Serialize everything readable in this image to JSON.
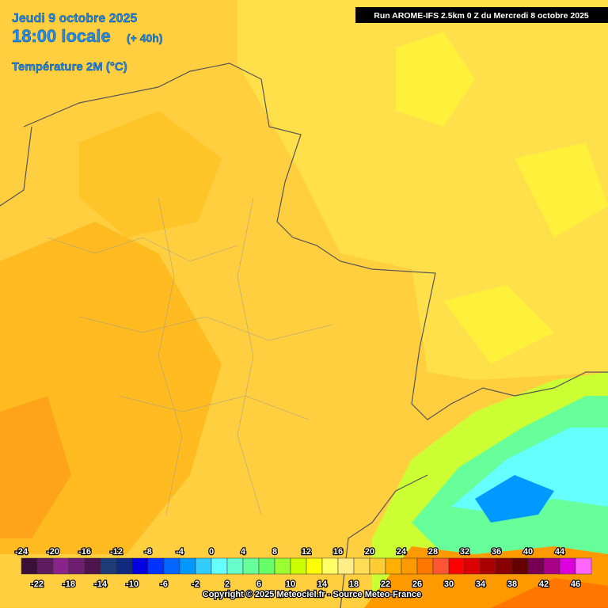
{
  "header": {
    "date": "Jeudi 9 octobre 2025",
    "time": "18:00 locale",
    "lead": "(+ 40h)",
    "field": "Température 2M (°C)",
    "run": "Run AROME-IFS 2.5km 0 Z du Mercredi 8 octobre 2025"
  },
  "colorbar": {
    "ticks": [
      -24,
      -22,
      -20,
      -18,
      -16,
      -14,
      -12,
      -10,
      -8,
      -6,
      -4,
      -2,
      0,
      2,
      4,
      6,
      8,
      10,
      12,
      14,
      16,
      18,
      20,
      22,
      24,
      26,
      28,
      30,
      32,
      34,
      36,
      38,
      40,
      42,
      44,
      46
    ],
    "colors": [
      "#3a0f3a",
      "#5e1b5e",
      "#8a248a",
      "#6e1e6e",
      "#4d144d",
      "#1e3c78",
      "#102a80",
      "#0000e0",
      "#0033ff",
      "#0066ff",
      "#0099ff",
      "#33ccff",
      "#66ffff",
      "#66ffcc",
      "#66ff99",
      "#66ff66",
      "#99ff33",
      "#ccff00",
      "#ffff00",
      "#ffff66",
      "#ffee88",
      "#ffdd55",
      "#ffcc33",
      "#ffb000",
      "#ff9900",
      "#ff7700",
      "#ff5533",
      "#ff0000",
      "#dd0000",
      "#aa0000",
      "#880000",
      "#660000",
      "#770055",
      "#aa0088",
      "#dd00dd",
      "#ff66ff"
    ]
  },
  "footer": {
    "copyright": "Copyright © 2025 Meteociel.fr - Source Meteo-France"
  }
}
